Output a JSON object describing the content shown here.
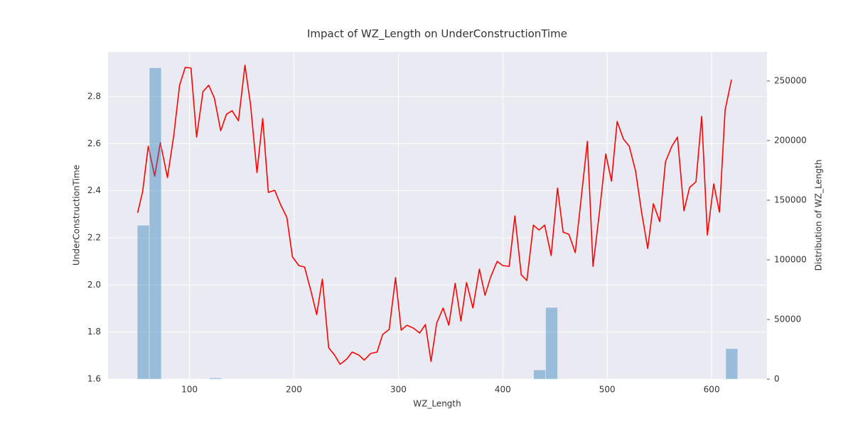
{
  "chart_data": {
    "type": "combo",
    "title": "Impact of WZ_Length on UnderConstructionTime",
    "xlabel": "WZ_Length",
    "ylabel": "UnderConstructionTime",
    "y2label": "Distribution of WZ_Length",
    "xlim": [
      22,
      653
    ],
    "ylim": [
      1.6,
      2.99
    ],
    "y2lim": [
      0,
      274400
    ],
    "xticks": [
      100,
      200,
      300,
      400,
      500,
      600
    ],
    "yticks": [
      1.6,
      1.8,
      {
        "value": 2,
        "label": "2.0"
      },
      2.2,
      2.4,
      2.6,
      2.8
    ],
    "y2ticks": [
      0,
      50000,
      100000,
      150000,
      200000,
      250000
    ],
    "grid": true,
    "series": [
      {
        "type": "line",
        "color": "#ff0000",
        "x": [
          50.3,
          55.1,
          60.5,
          66.7,
          72.1,
          78.9,
          85.0,
          90.5,
          95.9,
          101.4,
          106.8,
          112.9,
          118.4,
          123.8,
          129.9,
          135.4,
          140.8,
          146.9,
          153.1,
          158.5,
          164.6,
          170.1,
          175.5,
          181.6,
          187.1,
          193.2,
          198.6,
          204.8,
          210.2,
          216.3,
          221.8,
          227.2,
          233.3,
          238.8,
          244.2,
          250.3,
          255.8,
          261.9,
          267.3,
          273.5,
          279.6,
          285.0,
          291.2,
          297.3,
          302.7,
          308.2,
          314.3,
          320.4,
          325.9,
          331.3,
          336.7,
          342.9,
          348.3,
          354.4,
          359.9,
          365.3,
          371.4,
          377.6,
          383.0,
          388.4,
          394.6,
          400.0,
          406.1,
          411.6,
          417.7,
          423.1,
          429.3,
          434.7,
          440.1,
          446.3,
          452.4,
          457.8,
          463.3,
          469.4,
          474.8,
          481.0,
          486.4,
          492.5,
          498.6,
          504.1,
          509.5,
          515.6,
          521.1,
          527.2,
          532.7,
          538.8,
          544.2,
          550.3,
          555.8,
          561.9,
          567.3,
          573.5,
          578.9,
          585.0,
          590.5,
          595.9,
          602.0,
          607.5,
          612.9,
          619.0
        ],
        "values": [
          2.306,
          2.396,
          2.589,
          2.462,
          2.604,
          2.456,
          2.637,
          2.848,
          2.924,
          2.921,
          2.628,
          2.821,
          2.848,
          2.794,
          2.655,
          2.725,
          2.74,
          2.697,
          2.933,
          2.764,
          2.477,
          2.707,
          2.393,
          2.402,
          2.342,
          2.287,
          2.119,
          2.082,
          2.076,
          1.974,
          1.874,
          2.025,
          1.733,
          1.703,
          1.663,
          1.684,
          1.715,
          1.703,
          1.681,
          1.709,
          1.715,
          1.79,
          1.811,
          2.031,
          1.808,
          1.829,
          1.817,
          1.796,
          1.832,
          1.675,
          1.838,
          1.902,
          1.829,
          2.007,
          1.847,
          2.01,
          1.902,
          2.067,
          1.956,
          2.034,
          2.1,
          2.082,
          2.079,
          2.293,
          2.043,
          2.019,
          2.254,
          2.233,
          2.254,
          2.125,
          2.411,
          2.224,
          2.215,
          2.137,
          2.357,
          2.61,
          2.079,
          2.306,
          2.556,
          2.441,
          2.694,
          2.619,
          2.589,
          2.483,
          2.315,
          2.155,
          2.345,
          2.269,
          2.523,
          2.589,
          2.628,
          2.315,
          2.414,
          2.438,
          2.716,
          2.212,
          2.429,
          2.309,
          2.743,
          2.872
        ]
      },
      {
        "type": "histogram",
        "axis": "y2",
        "color": "#1f77b4",
        "alpha": 0.4,
        "bins": [
          50,
          61.5,
          73,
          84.5,
          96,
          107.5,
          119,
          130.5,
          142,
          153.5,
          165,
          176.5,
          188,
          199.5,
          211,
          222.5,
          234,
          245.5,
          257,
          268.5,
          280,
          291.5,
          303,
          314.5,
          326,
          337.5,
          349,
          360.5,
          372,
          383.5,
          395,
          406.5,
          418,
          429.5,
          441,
          452.5,
          464,
          475.5,
          487,
          498.5,
          510,
          521.5,
          533,
          544.5,
          556,
          567.5,
          579,
          590.5,
          602,
          613.5,
          625
        ],
        "values": [
          129000,
          261000,
          0,
          0,
          0,
          0,
          1000,
          0,
          0,
          0,
          0,
          0,
          0,
          0,
          0,
          0,
          0,
          0,
          0,
          0,
          0,
          0,
          0,
          0,
          0,
          0,
          0,
          0,
          0,
          0,
          0,
          0,
          0,
          7700,
          60100,
          0,
          0,
          0,
          0,
          0,
          0,
          0,
          0,
          0,
          0,
          0,
          0,
          0,
          0,
          25600
        ]
      }
    ]
  }
}
